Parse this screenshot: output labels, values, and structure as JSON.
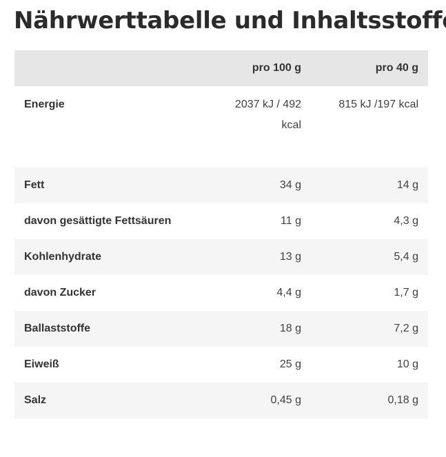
{
  "title": "Nährwerttabelle und Inhaltsstoffe:",
  "table": {
    "headers": [
      "",
      "pro 100 g",
      "pro 40 g"
    ],
    "rows": [
      {
        "name": "Energie",
        "per100": "2037 kJ / 492 kcal",
        "per40": "815 kJ /197 kcal"
      },
      {
        "name": "Fett",
        "per100": "34 g",
        "per40": "14 g"
      },
      {
        "name": "davon gesättigte Fettsäuren",
        "per100": "11 g",
        "per40": "4,3 g"
      },
      {
        "name": "Kohlenhydrate",
        "per100": "13 g",
        "per40": "5,4 g"
      },
      {
        "name": "davon Zucker",
        "per100": "4,4 g",
        "per40": "1,7 g"
      },
      {
        "name": "Ballaststoffe",
        "per100": "18 g",
        "per40": "7,2 g"
      },
      {
        "name": "Eiweiß",
        "per100": "25 g",
        "per40": "10 g"
      },
      {
        "name": "Salz",
        "per100": "0,45 g",
        "per40": "0,18 g"
      }
    ]
  },
  "colors": {
    "header_bg": "#e6e6e6",
    "stripe_bg": "#f5f5f5",
    "text": "#333333"
  }
}
